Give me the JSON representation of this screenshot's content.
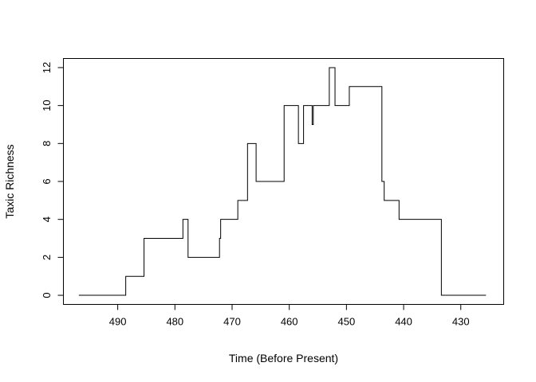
{
  "chart_data": {
    "type": "line",
    "step": "post",
    "xlabel": "Time (Before Present)",
    "ylabel": "Taxic Richness",
    "xlim": [
      499.5,
      422.5
    ],
    "ylim": [
      -0.48,
      12.48
    ],
    "x_axis_reversed": true,
    "box": true,
    "grid": false,
    "xticks": [
      490,
      480,
      470,
      460,
      450,
      440,
      430
    ],
    "xtick_labels": [
      "490",
      "480",
      "470",
      "460",
      "450",
      "440",
      "430"
    ],
    "yticks": [
      0,
      2,
      4,
      6,
      8,
      10,
      12
    ],
    "ytick_labels": [
      "0",
      "2",
      "4",
      "6",
      "8",
      "10",
      "12"
    ],
    "series": [
      {
        "color": "#000000",
        "x": [
          496.8,
          488.6,
          485.4,
          478.6,
          477.7,
          472.2,
          472.0,
          469.0,
          467.3,
          465.8,
          460.9,
          458.4,
          457.5,
          456.0,
          455.8,
          453.0,
          452.0,
          450.7,
          449.5,
          443.8,
          443.4,
          440.8,
          433.4,
          425.6
        ],
        "y": [
          0,
          1,
          3,
          4,
          2,
          3,
          4,
          5,
          8,
          6,
          10,
          8,
          10,
          9,
          10,
          12,
          10,
          10,
          11,
          6,
          5,
          4,
          0,
          0
        ]
      }
    ]
  }
}
